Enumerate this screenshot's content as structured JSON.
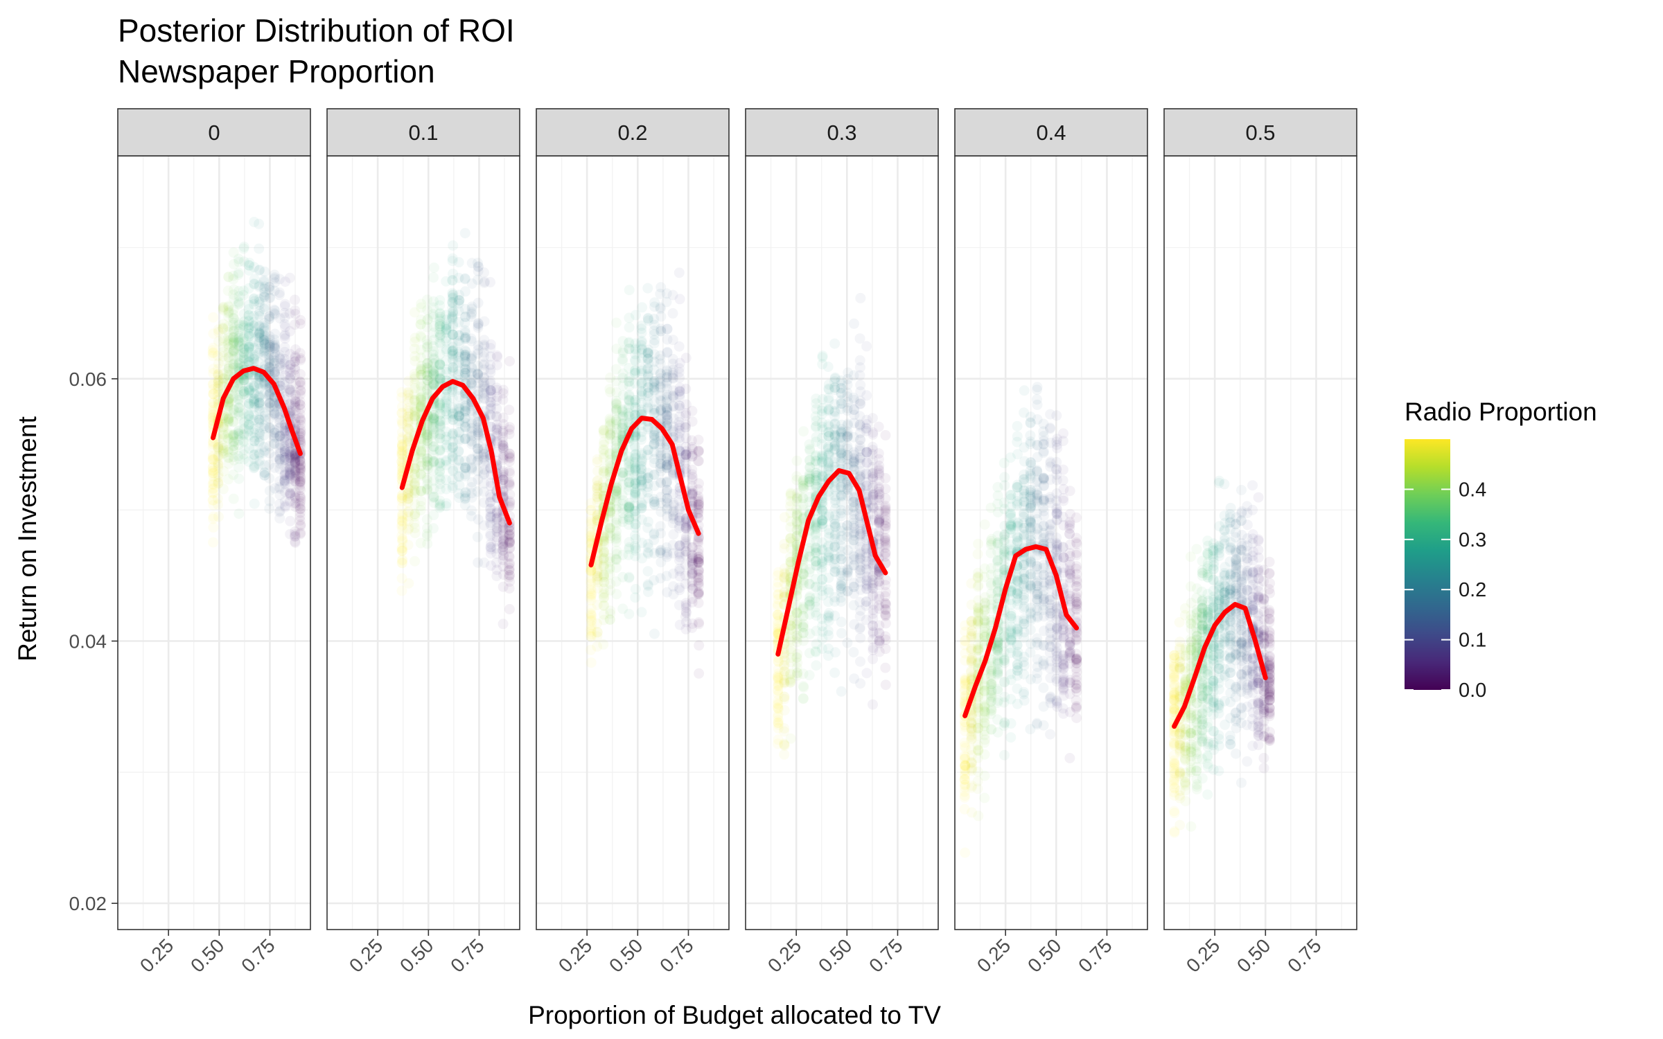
{
  "chart_data": {
    "type": "scatter",
    "title": "Posterior Distribution of ROI",
    "subtitle": "Newspaper Proportion",
    "xlabel": "Proportion of Budget allocated to TV",
    "ylabel": "Return on Investment",
    "xlim": [
      0.0,
      0.95
    ],
    "ylim": [
      0.018,
      0.077
    ],
    "x_ticks": [
      "0.25",
      "0.50",
      "0.75"
    ],
    "x_tick_values": [
      0.25,
      0.5,
      0.75
    ],
    "y_ticks": [
      "0.02",
      "0.04",
      "0.06"
    ],
    "y_tick_values": [
      0.02,
      0.04,
      0.06
    ],
    "grid": true,
    "legend": {
      "title": "Radio Proportion",
      "placement": "right",
      "type": "colorbar",
      "min": 0.0,
      "max": 0.5,
      "ticks": [
        "0.0",
        "0.1",
        "0.2",
        "0.3",
        "0.4"
      ],
      "tick_values": [
        0.0,
        0.1,
        0.2,
        0.3,
        0.4
      ],
      "colors": [
        "#440154",
        "#482878",
        "#3e4a89",
        "#31688e",
        "#26828e",
        "#1f9e89",
        "#35b779",
        "#6ece58",
        "#b5de2b",
        "#fde725"
      ]
    },
    "trend_color": "#ff0000",
    "point_opacity": 0.06,
    "facets": [
      {
        "label": "0",
        "x_range": [
          0.5,
          0.9
        ],
        "trend": [
          [
            0.47,
            0.0555
          ],
          [
            0.52,
            0.0585
          ],
          [
            0.57,
            0.06
          ],
          [
            0.62,
            0.0606
          ],
          [
            0.67,
            0.0608
          ],
          [
            0.72,
            0.0605
          ],
          [
            0.77,
            0.0596
          ],
          [
            0.82,
            0.0578
          ],
          [
            0.86,
            0.056
          ],
          [
            0.9,
            0.0543
          ]
        ],
        "envelope_top": [
          [
            0.47,
            0.067
          ],
          [
            0.55,
            0.071
          ],
          [
            0.65,
            0.0728
          ],
          [
            0.72,
            0.0732
          ],
          [
            0.8,
            0.0725
          ],
          [
            0.85,
            0.0715
          ],
          [
            0.9,
            0.069
          ]
        ],
        "envelope_bottom": [
          [
            0.47,
            0.046
          ],
          [
            0.55,
            0.048
          ],
          [
            0.65,
            0.049
          ],
          [
            0.72,
            0.048
          ],
          [
            0.8,
            0.0465
          ],
          [
            0.85,
            0.0455
          ],
          [
            0.9,
            0.044
          ]
        ]
      },
      {
        "label": "0.1",
        "x_range": [
          0.4,
          0.9
        ],
        "trend": [
          [
            0.37,
            0.0517
          ],
          [
            0.42,
            0.0545
          ],
          [
            0.47,
            0.0568
          ],
          [
            0.52,
            0.0585
          ],
          [
            0.57,
            0.0594
          ],
          [
            0.62,
            0.0598
          ],
          [
            0.67,
            0.0595
          ],
          [
            0.72,
            0.0585
          ],
          [
            0.77,
            0.057
          ],
          [
            0.81,
            0.0545
          ],
          [
            0.85,
            0.051
          ],
          [
            0.9,
            0.049
          ]
        ],
        "envelope_top": [
          [
            0.37,
            0.063
          ],
          [
            0.45,
            0.068
          ],
          [
            0.55,
            0.0715
          ],
          [
            0.65,
            0.0728
          ],
          [
            0.72,
            0.0722
          ],
          [
            0.8,
            0.07
          ],
          [
            0.9,
            0.064
          ]
        ],
        "envelope_bottom": [
          [
            0.37,
            0.041
          ],
          [
            0.45,
            0.044
          ],
          [
            0.55,
            0.046
          ],
          [
            0.65,
            0.0455
          ],
          [
            0.75,
            0.044
          ],
          [
            0.85,
            0.041
          ],
          [
            0.9,
            0.039
          ]
        ]
      },
      {
        "label": "0.2",
        "x_range": [
          0.3,
          0.8
        ],
        "trend": [
          [
            0.27,
            0.0458
          ],
          [
            0.32,
            0.049
          ],
          [
            0.37,
            0.052
          ],
          [
            0.42,
            0.0545
          ],
          [
            0.47,
            0.0562
          ],
          [
            0.52,
            0.057
          ],
          [
            0.57,
            0.0569
          ],
          [
            0.62,
            0.0562
          ],
          [
            0.67,
            0.055
          ],
          [
            0.71,
            0.0525
          ],
          [
            0.75,
            0.05
          ],
          [
            0.8,
            0.0482
          ]
        ],
        "envelope_top": [
          [
            0.27,
            0.055
          ],
          [
            0.35,
            0.062
          ],
          [
            0.45,
            0.068
          ],
          [
            0.55,
            0.0712
          ],
          [
            0.62,
            0.0715
          ],
          [
            0.7,
            0.069
          ],
          [
            0.8,
            0.062
          ]
        ],
        "envelope_bottom": [
          [
            0.27,
            0.034
          ],
          [
            0.35,
            0.037
          ],
          [
            0.45,
            0.0395
          ],
          [
            0.55,
            0.04
          ],
          [
            0.65,
            0.0385
          ],
          [
            0.75,
            0.037
          ],
          [
            0.8,
            0.036
          ]
        ]
      },
      {
        "label": "0.3",
        "x_range": [
          0.2,
          0.7
        ],
        "trend": [
          [
            0.16,
            0.039
          ],
          [
            0.21,
            0.0425
          ],
          [
            0.26,
            0.046
          ],
          [
            0.31,
            0.0492
          ],
          [
            0.36,
            0.051
          ],
          [
            0.41,
            0.0522
          ],
          [
            0.46,
            0.053
          ],
          [
            0.51,
            0.0528
          ],
          [
            0.56,
            0.0515
          ],
          [
            0.6,
            0.049
          ],
          [
            0.64,
            0.0465
          ],
          [
            0.69,
            0.0452
          ]
        ],
        "envelope_top": [
          [
            0.16,
            0.048
          ],
          [
            0.25,
            0.056
          ],
          [
            0.35,
            0.062
          ],
          [
            0.45,
            0.066
          ],
          [
            0.52,
            0.0685
          ],
          [
            0.6,
            0.066
          ],
          [
            0.69,
            0.058
          ]
        ],
        "envelope_bottom": [
          [
            0.16,
            0.0275
          ],
          [
            0.25,
            0.0305
          ],
          [
            0.35,
            0.033
          ],
          [
            0.45,
            0.0335
          ],
          [
            0.55,
            0.033
          ],
          [
            0.65,
            0.0325
          ],
          [
            0.69,
            0.033
          ]
        ]
      },
      {
        "label": "0.4",
        "x_range": [
          0.1,
          0.6
        ],
        "trend": [
          [
            0.05,
            0.0343
          ],
          [
            0.1,
            0.0365
          ],
          [
            0.15,
            0.0385
          ],
          [
            0.2,
            0.041
          ],
          [
            0.25,
            0.044
          ],
          [
            0.3,
            0.0465
          ],
          [
            0.35,
            0.047
          ],
          [
            0.4,
            0.0472
          ],
          [
            0.45,
            0.047
          ],
          [
            0.5,
            0.045
          ],
          [
            0.55,
            0.042
          ],
          [
            0.6,
            0.041
          ]
        ],
        "envelope_top": [
          [
            0.05,
            0.044
          ],
          [
            0.12,
            0.05
          ],
          [
            0.22,
            0.056
          ],
          [
            0.32,
            0.061
          ],
          [
            0.4,
            0.0632
          ],
          [
            0.5,
            0.0615
          ],
          [
            0.6,
            0.053
          ]
        ],
        "envelope_bottom": [
          [
            0.05,
            0.023
          ],
          [
            0.12,
            0.025
          ],
          [
            0.22,
            0.0275
          ],
          [
            0.32,
            0.029
          ],
          [
            0.42,
            0.0295
          ],
          [
            0.52,
            0.029
          ],
          [
            0.6,
            0.0285
          ]
        ]
      },
      {
        "label": "0.5",
        "x_range": [
          0.0,
          0.5
        ],
        "trend": [
          [
            0.05,
            0.0335
          ],
          [
            0.1,
            0.035
          ],
          [
            0.15,
            0.0372
          ],
          [
            0.2,
            0.0395
          ],
          [
            0.25,
            0.0412
          ],
          [
            0.3,
            0.0422
          ],
          [
            0.35,
            0.0428
          ],
          [
            0.4,
            0.0425
          ],
          [
            0.45,
            0.04
          ],
          [
            0.5,
            0.0372
          ]
        ],
        "envelope_top": [
          [
            0.05,
            0.042
          ],
          [
            0.12,
            0.047
          ],
          [
            0.2,
            0.051
          ],
          [
            0.3,
            0.0545
          ],
          [
            0.38,
            0.057
          ],
          [
            0.45,
            0.055
          ],
          [
            0.52,
            0.0495
          ]
        ],
        "envelope_bottom": [
          [
            0.05,
            0.02
          ],
          [
            0.12,
            0.023
          ],
          [
            0.2,
            0.0255
          ],
          [
            0.3,
            0.027
          ],
          [
            0.38,
            0.028
          ],
          [
            0.45,
            0.0285
          ],
          [
            0.52,
            0.029
          ]
        ]
      }
    ]
  }
}
